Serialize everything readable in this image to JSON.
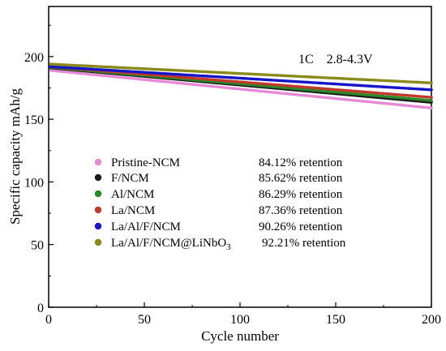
{
  "chart_data": {
    "type": "scatter",
    "xlabel": "Cycle number",
    "ylabel": "Specific capacity mAh/g",
    "xlim": [
      0,
      200
    ],
    "ylim": [
      0,
      240
    ],
    "x_ticks": [
      0,
      50,
      100,
      150,
      200
    ],
    "y_ticks": [
      0,
      50,
      100,
      150,
      200
    ],
    "annotation": "1C    2.8-4.3V",
    "legend_placement": "lower-left",
    "series": [
      {
        "name": "Pristine-NCM",
        "retention": "84.12% retention",
        "color": "#e68ad6",
        "start": 189,
        "end": 159
      },
      {
        "name": "F/NCM",
        "retention": "85.62% retention",
        "color": "#1a1a1a",
        "start": 191,
        "end": 163.5
      },
      {
        "name": "Al/NCM",
        "retention": "86.29% retention",
        "color": "#2a8a2a",
        "start": 191.5,
        "end": 165
      },
      {
        "name": "La/NCM",
        "retention": "87.36% retention",
        "color": "#c0392b",
        "start": 192,
        "end": 167.5
      },
      {
        "name": "La/Al/F/NCM",
        "retention": "90.26% retention",
        "color": "#1414c8",
        "start": 192,
        "end": 173.5
      },
      {
        "name": "La/Al/F/NCM@LiNbO",
        "name_sub": "3",
        "retention": "92.21% retention",
        "color": "#8a8a1a",
        "start": 194,
        "end": 179
      }
    ]
  }
}
